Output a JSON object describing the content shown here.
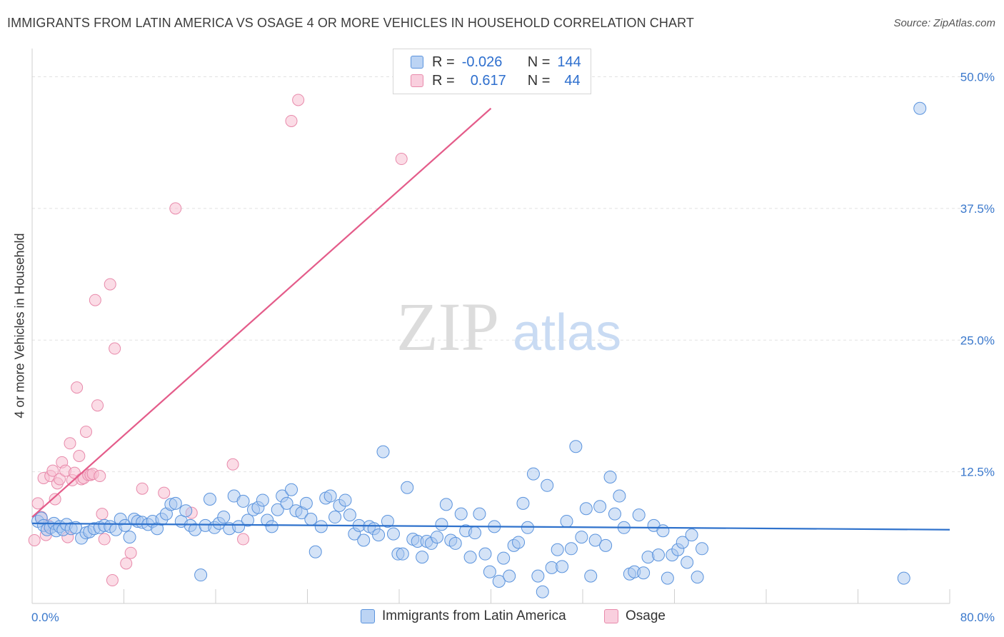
{
  "header": {
    "title": "IMMIGRANTS FROM LATIN AMERICA VS OSAGE 4 OR MORE VEHICLES IN HOUSEHOLD CORRELATION CHART",
    "source": "Source: ZipAtlas.com"
  },
  "watermark": {
    "zip": "ZIP",
    "atlas": "atlas"
  },
  "legend_top": {
    "rows": [
      {
        "r_label": "R =",
        "r_value": "-0.026",
        "n_label": "N =",
        "n_value": "144"
      },
      {
        "r_label": "R =",
        "r_value": "0.617",
        "n_label": "N =",
        "n_value": "44"
      }
    ]
  },
  "colors": {
    "blue_fill": "#a9c8f0",
    "blue_stroke": "#5a93dd",
    "blue_line": "#2f72cc",
    "pink_fill": "#f7bfd2",
    "pink_stroke": "#e88aab",
    "pink_line": "#e45c8a",
    "axis_label": "#3a78cc",
    "grid": "#e2e2e2"
  },
  "chart_data": {
    "type": "scatter",
    "title": "IMMIGRANTS FROM LATIN AMERICA VS OSAGE 4 OR MORE VEHICLES IN HOUSEHOLD CORRELATION CHART",
    "xlabel": "",
    "ylabel": "4 or more Vehicles in Household",
    "xlim": [
      0,
      80
    ],
    "ylim": [
      0,
      52
    ],
    "x_tick_labels": [
      "0.0%",
      "80.0%"
    ],
    "y_ticks": [
      12.5,
      25.0,
      37.5,
      50.0
    ],
    "y_tick_labels": [
      "12.5%",
      "25.0%",
      "37.5%",
      "50.0%"
    ],
    "grid": true,
    "legend_position": "bottom",
    "series": [
      {
        "name": "Immigrants from Latin America",
        "color": "#a9c8f0",
        "trend": {
          "x": [
            0,
            80
          ],
          "y": [
            7.6,
            7.0
          ]
        },
        "points": [
          [
            0.5,
            7.8
          ],
          [
            0.8,
            8.1
          ],
          [
            1.0,
            7.4
          ],
          [
            1.3,
            7.0
          ],
          [
            1.6,
            7.2
          ],
          [
            1.9,
            7.6
          ],
          [
            2.1,
            6.9
          ],
          [
            2.4,
            7.3
          ],
          [
            2.7,
            7.0
          ],
          [
            3.0,
            7.5
          ],
          [
            3.4,
            7.1
          ],
          [
            3.8,
            7.2
          ],
          [
            4.3,
            6.2
          ],
          [
            4.7,
            6.7
          ],
          [
            5.0,
            6.8
          ],
          [
            5.4,
            7.1
          ],
          [
            5.9,
            7.2
          ],
          [
            6.3,
            7.4
          ],
          [
            6.8,
            7.3
          ],
          [
            7.3,
            7.0
          ],
          [
            7.7,
            8.0
          ],
          [
            8.1,
            7.4
          ],
          [
            8.5,
            6.3
          ],
          [
            8.9,
            8.0
          ],
          [
            9.2,
            7.8
          ],
          [
            9.6,
            7.7
          ],
          [
            10.1,
            7.5
          ],
          [
            10.5,
            7.8
          ],
          [
            10.9,
            7.1
          ],
          [
            11.3,
            8.0
          ],
          [
            11.7,
            8.5
          ],
          [
            12.1,
            9.4
          ],
          [
            12.5,
            9.5
          ],
          [
            13.0,
            7.8
          ],
          [
            13.4,
            8.8
          ],
          [
            13.8,
            7.4
          ],
          [
            14.2,
            7.0
          ],
          [
            14.7,
            2.7
          ],
          [
            15.1,
            7.4
          ],
          [
            15.5,
            9.9
          ],
          [
            15.9,
            7.2
          ],
          [
            16.3,
            7.6
          ],
          [
            16.7,
            8.2
          ],
          [
            17.2,
            7.1
          ],
          [
            17.6,
            10.2
          ],
          [
            18.0,
            7.3
          ],
          [
            18.4,
            9.7
          ],
          [
            18.8,
            7.9
          ],
          [
            19.3,
            8.9
          ],
          [
            19.7,
            9.1
          ],
          [
            20.1,
            9.8
          ],
          [
            20.5,
            7.9
          ],
          [
            20.9,
            7.3
          ],
          [
            21.4,
            8.9
          ],
          [
            21.8,
            10.2
          ],
          [
            22.2,
            9.5
          ],
          [
            22.6,
            10.8
          ],
          [
            23.0,
            8.8
          ],
          [
            23.5,
            8.6
          ],
          [
            23.9,
            9.5
          ],
          [
            24.3,
            8.0
          ],
          [
            24.7,
            4.9
          ],
          [
            25.2,
            7.3
          ],
          [
            25.6,
            10.0
          ],
          [
            26.0,
            10.2
          ],
          [
            26.4,
            8.2
          ],
          [
            26.8,
            9.3
          ],
          [
            27.3,
            9.8
          ],
          [
            27.7,
            8.4
          ],
          [
            28.1,
            6.6
          ],
          [
            28.5,
            7.4
          ],
          [
            28.9,
            6.0
          ],
          [
            29.4,
            7.3
          ],
          [
            29.8,
            7.1
          ],
          [
            30.2,
            6.5
          ],
          [
            30.6,
            14.4
          ],
          [
            31.0,
            7.8
          ],
          [
            31.5,
            6.6
          ],
          [
            31.9,
            4.7
          ],
          [
            32.3,
            4.7
          ],
          [
            32.7,
            11.0
          ],
          [
            33.2,
            6.1
          ],
          [
            33.6,
            5.9
          ],
          [
            34.0,
            4.4
          ],
          [
            34.4,
            5.9
          ],
          [
            34.8,
            5.7
          ],
          [
            35.3,
            6.3
          ],
          [
            35.7,
            7.5
          ],
          [
            36.1,
            9.4
          ],
          [
            36.5,
            6.0
          ],
          [
            36.9,
            5.7
          ],
          [
            37.4,
            8.5
          ],
          [
            37.8,
            6.9
          ],
          [
            38.2,
            4.4
          ],
          [
            38.6,
            6.7
          ],
          [
            39.0,
            8.5
          ],
          [
            39.5,
            4.7
          ],
          [
            39.9,
            3.0
          ],
          [
            40.3,
            7.3
          ],
          [
            40.7,
            2.1
          ],
          [
            41.1,
            4.3
          ],
          [
            41.6,
            2.6
          ],
          [
            42.0,
            5.5
          ],
          [
            42.4,
            5.8
          ],
          [
            42.8,
            9.5
          ],
          [
            43.2,
            7.2
          ],
          [
            43.7,
            12.3
          ],
          [
            44.1,
            2.6
          ],
          [
            44.5,
            1.1
          ],
          [
            44.9,
            11.2
          ],
          [
            45.3,
            3.4
          ],
          [
            45.8,
            5.1
          ],
          [
            46.2,
            3.5
          ],
          [
            46.6,
            7.8
          ],
          [
            47.0,
            5.2
          ],
          [
            47.4,
            14.9
          ],
          [
            47.9,
            6.3
          ],
          [
            48.3,
            9.0
          ],
          [
            48.7,
            2.6
          ],
          [
            49.1,
            6.0
          ],
          [
            49.5,
            9.2
          ],
          [
            50.0,
            5.5
          ],
          [
            50.4,
            12.0
          ],
          [
            50.8,
            8.5
          ],
          [
            51.2,
            10.2
          ],
          [
            51.6,
            7.2
          ],
          [
            52.1,
            2.8
          ],
          [
            52.5,
            3.0
          ],
          [
            52.9,
            8.4
          ],
          [
            53.3,
            2.9
          ],
          [
            53.7,
            4.4
          ],
          [
            54.2,
            7.4
          ],
          [
            54.6,
            4.6
          ],
          [
            55.0,
            6.9
          ],
          [
            55.4,
            2.4
          ],
          [
            55.8,
            4.6
          ],
          [
            56.3,
            5.1
          ],
          [
            56.7,
            5.8
          ],
          [
            57.1,
            3.9
          ],
          [
            57.5,
            6.5
          ],
          [
            58.0,
            2.5
          ],
          [
            58.4,
            5.2
          ],
          [
            77.4,
            47.0
          ],
          [
            76.0,
            2.4
          ]
        ]
      },
      {
        "name": "Osage",
        "color": "#f7bfd2",
        "trend": {
          "x": [
            0,
            40
          ],
          "y": [
            8.2,
            47.0
          ]
        },
        "points": [
          [
            0.2,
            6.0
          ],
          [
            0.5,
            9.5
          ],
          [
            0.8,
            8.2
          ],
          [
            1.0,
            11.9
          ],
          [
            1.2,
            6.5
          ],
          [
            1.4,
            7.4
          ],
          [
            1.6,
            12.1
          ],
          [
            1.8,
            12.6
          ],
          [
            2.0,
            9.9
          ],
          [
            2.2,
            11.4
          ],
          [
            2.4,
            11.8
          ],
          [
            2.6,
            13.4
          ],
          [
            2.9,
            12.6
          ],
          [
            3.1,
            6.3
          ],
          [
            3.3,
            15.2
          ],
          [
            3.5,
            11.7
          ],
          [
            3.7,
            12.4
          ],
          [
            3.9,
            20.5
          ],
          [
            4.1,
            14.0
          ],
          [
            4.3,
            11.8
          ],
          [
            4.5,
            11.9
          ],
          [
            4.7,
            16.3
          ],
          [
            4.9,
            12.2
          ],
          [
            5.1,
            12.2
          ],
          [
            5.3,
            12.3
          ],
          [
            5.5,
            28.8
          ],
          [
            5.7,
            18.8
          ],
          [
            5.9,
            12.1
          ],
          [
            6.1,
            8.5
          ],
          [
            6.3,
            6.1
          ],
          [
            6.8,
            30.3
          ],
          [
            7.0,
            2.2
          ],
          [
            7.2,
            24.2
          ],
          [
            8.2,
            3.8
          ],
          [
            8.6,
            4.8
          ],
          [
            9.6,
            10.9
          ],
          [
            11.5,
            10.5
          ],
          [
            12.5,
            37.5
          ],
          [
            13.9,
            8.6
          ],
          [
            17.5,
            13.2
          ],
          [
            18.4,
            6.1
          ],
          [
            22.6,
            45.8
          ],
          [
            23.2,
            47.8
          ],
          [
            32.2,
            42.2
          ]
        ]
      }
    ]
  },
  "bottom_legend": {
    "items": [
      {
        "label": "Immigrants from Latin America"
      },
      {
        "label": "Osage"
      }
    ]
  }
}
